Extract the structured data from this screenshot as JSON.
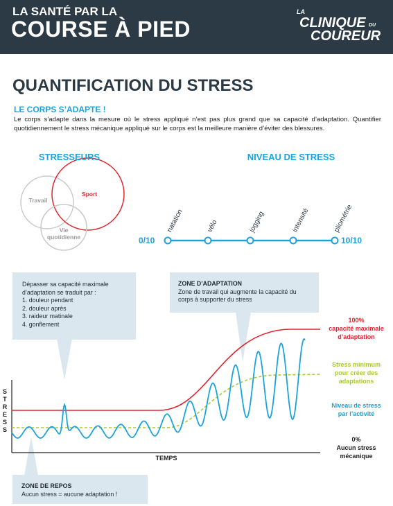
{
  "header": {
    "line1": "LA SANTÉ PAR LA",
    "line2": "COURSE À PIED",
    "logo": [
      "LA",
      "CLINIQUE",
      "DU",
      "COUREUR"
    ]
  },
  "title": "QUANTIFICATION DU STRESS",
  "intro": {
    "heading": "LE CORPS S’ADAPTE !",
    "text": "Le corps s’adapte dans la mesure où le stress appliqué n’est pas plus grand que sa capacité d’adaptation. Quantifier quotidiennement le stress mécanique appliqué sur le corps est la meilleure manière d’éviter des blessures."
  },
  "stressors": {
    "title": "STRESSEURS",
    "items": [
      "Travail",
      "Sport",
      "Vie quotidienne"
    ]
  },
  "stress_level": {
    "title": "NIVEAU DE STRESS",
    "min": "0/10",
    "max": "10/10",
    "activities": [
      "natation",
      "vélo",
      "jogging",
      "intensité",
      "pliométrie"
    ]
  },
  "callouts": [
    {
      "text": "Dépasser sa capacité maximale d’adaptation se traduit par :",
      "items": [
        "1. douleur pendant",
        "2. douleur après",
        "3. raideur matinale",
        "4. gonflement"
      ]
    },
    {
      "title": "ZONE D’ADAPTATION",
      "text": "Zone de travail qui augmente la capacité du corps à supporter du stress"
    },
    {
      "title": "ZONE DE REPOS",
      "text": "Aucun stress = aucune adaptation !"
    }
  ],
  "graph": {
    "y_axis": "STRESS",
    "x_axis": "TEMPS",
    "labels": [
      {
        "lines": [
          "100%",
          "capacité maximale",
          "d’adaptation"
        ]
      },
      {
        "lines": [
          "Stress minimum",
          "pour créer des",
          "adaptations"
        ]
      },
      {
        "lines": [
          "Niveau de stress",
          "par l’activité"
        ]
      },
      {
        "lines": [
          "0%",
          "Aucun stress",
          "mécanique"
        ]
      }
    ]
  }
}
